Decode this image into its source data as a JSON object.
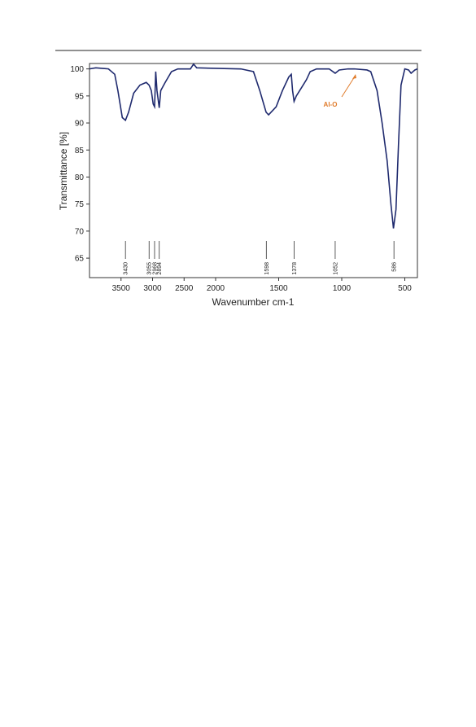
{
  "chart_data": {
    "type": "line",
    "xlabel": "Wavenumber cm-1",
    "ylabel": "Transmittance [%]",
    "xlim": [
      4000,
      400
    ],
    "ylim": [
      61.4,
      101
    ],
    "xticks": [
      3500,
      3000,
      2500,
      2000,
      1500,
      1000,
      500
    ],
    "yticks": [
      65,
      70,
      75,
      80,
      85,
      90,
      95,
      100
    ],
    "x": [
      4000,
      3900,
      3700,
      3600,
      3550,
      3480,
      3430,
      3380,
      3300,
      3200,
      3100,
      3055,
      3020,
      2990,
      2968,
      2950,
      2930,
      2894,
      2870,
      2800,
      2700,
      2600,
      2400,
      2350,
      2300,
      2000,
      1800,
      1700,
      1650,
      1600,
      1580,
      1520,
      1470,
      1420,
      1400,
      1390,
      1378,
      1360,
      1320,
      1280,
      1250,
      1200,
      1100,
      1052,
      1020,
      950,
      900,
      800,
      770,
      720,
      680,
      640,
      610,
      590,
      570,
      550,
      530,
      500,
      470,
      450,
      420,
      400
    ],
    "series": [
      {
        "color": "#1f2a6e",
        "values": [
          100,
          100.2,
          100,
          99,
          96,
          91,
          90.5,
          92,
          95.5,
          97,
          97.5,
          97,
          96,
          93.5,
          93,
          99.5,
          96,
          92.8,
          96,
          97.5,
          99.5,
          100,
          100,
          100.9,
          100.2,
          100.1,
          100,
          99.5,
          96,
          92,
          91.5,
          93,
          96,
          98.5,
          99,
          96,
          94,
          95,
          96.5,
          98,
          99.5,
          100,
          100,
          99.2,
          99.8,
          100,
          100,
          99.8,
          99.5,
          96,
          90,
          83,
          75,
          70.5,
          74,
          86,
          97,
          100,
          99.8,
          99.2,
          99.8,
          100
        ]
      }
    ],
    "peaks": [
      3430,
      3055,
      2968,
      2894,
      1598,
      1378,
      1052,
      586
    ],
    "annotation": {
      "text": "Al-O",
      "color": "#e07b2a"
    }
  }
}
